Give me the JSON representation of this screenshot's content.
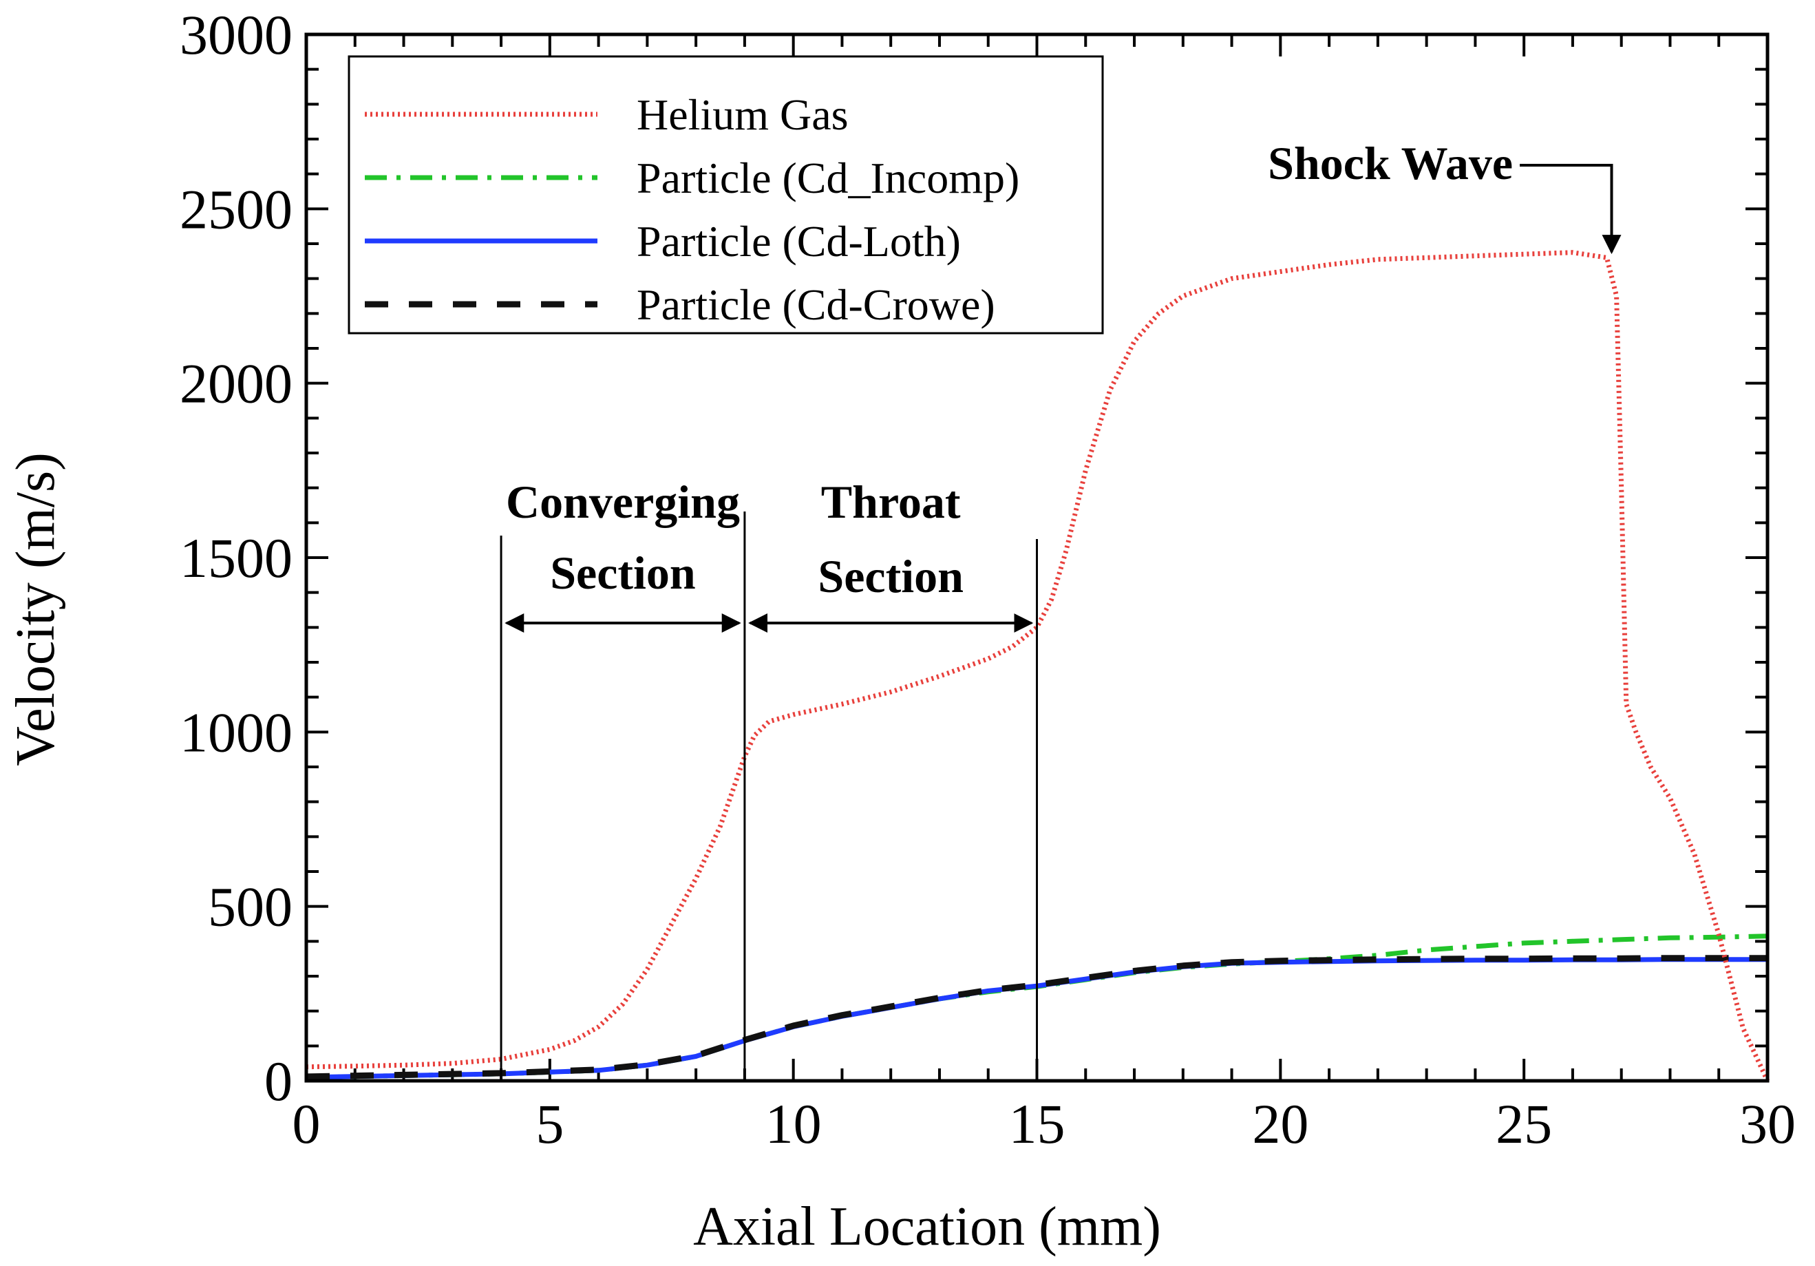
{
  "chart_data": {
    "type": "line",
    "title": "",
    "xlabel": "Axial Location (mm)",
    "ylabel": "Velocity (m/s)",
    "xlim": [
      0,
      30
    ],
    "ylim": [
      0,
      3000
    ],
    "xticks": [
      0,
      5,
      10,
      15,
      20,
      25,
      30
    ],
    "yticks": [
      0,
      500,
      1000,
      1500,
      2000,
      2500,
      3000
    ],
    "xtick_labels": [
      "0",
      "5",
      "10",
      "15",
      "20",
      "25",
      "30"
    ],
    "ytick_labels": [
      "0",
      "500",
      "1000",
      "1500",
      "2000",
      "2500",
      "3000"
    ],
    "grid": false,
    "legend_position": "top-left",
    "series": [
      {
        "name": "Helium Gas",
        "color": "#e8403c",
        "style": "dotted",
        "x": [
          0,
          1,
          2,
          3,
          4,
          5,
          5.5,
          6,
          6.5,
          7,
          7.5,
          8,
          8.5,
          9,
          9.2,
          9.5,
          10,
          11,
          12,
          13,
          14,
          14.5,
          15,
          15.3,
          15.6,
          16,
          16.5,
          17,
          17.5,
          18,
          19,
          20,
          21,
          22,
          23,
          24,
          25,
          26,
          26.7,
          26.9,
          27,
          27.1,
          27.3,
          27.6,
          28,
          28.5,
          29,
          29.5,
          30
        ],
        "y": [
          40,
          42,
          45,
          50,
          62,
          90,
          115,
          155,
          220,
          320,
          450,
          580,
          730,
          930,
          990,
          1030,
          1050,
          1080,
          1115,
          1160,
          1210,
          1245,
          1300,
          1380,
          1520,
          1750,
          1980,
          2120,
          2200,
          2250,
          2300,
          2320,
          2340,
          2355,
          2360,
          2365,
          2370,
          2375,
          2360,
          2250,
          1700,
          1080,
          1000,
          900,
          810,
          650,
          420,
          150,
          0
        ]
      },
      {
        "name": "Particle (Cd_Incomp)",
        "color": "#22c42a",
        "style": "dash-dot",
        "x": [
          0,
          2,
          4,
          6,
          7,
          8,
          9,
          10,
          11,
          12,
          13,
          14,
          15,
          16,
          17,
          18,
          19,
          20,
          21,
          22,
          23,
          24,
          25,
          26,
          27,
          28,
          29,
          30
        ],
        "y": [
          10,
          15,
          20,
          30,
          45,
          70,
          115,
          155,
          185,
          210,
          235,
          255,
          270,
          290,
          310,
          325,
          335,
          342,
          350,
          360,
          375,
          385,
          395,
          400,
          405,
          410,
          412,
          415
        ]
      },
      {
        "name": "Particle (Cd-Loth)",
        "color": "#1f3bff",
        "style": "solid",
        "x": [
          0,
          2,
          4,
          6,
          7,
          8,
          9,
          10,
          11,
          12,
          13,
          14,
          15,
          16,
          17,
          18,
          19,
          20,
          21,
          22,
          23,
          24,
          25,
          26,
          27,
          28,
          29,
          30
        ],
        "y": [
          10,
          15,
          20,
          30,
          45,
          70,
          115,
          155,
          185,
          210,
          235,
          258,
          272,
          292,
          312,
          327,
          337,
          340,
          342,
          344,
          345,
          346,
          346,
          347,
          347,
          348,
          348,
          348
        ]
      },
      {
        "name": "Particle (Cd-Crowe)",
        "color": "#111111",
        "style": "dashed",
        "x": [
          0,
          2,
          4,
          6,
          7,
          8,
          9,
          10,
          11,
          12,
          13,
          14,
          15,
          16,
          17,
          18,
          19,
          20,
          21,
          22,
          23,
          24,
          25,
          26,
          27,
          28,
          29,
          30
        ],
        "y": [
          12,
          17,
          22,
          32,
          47,
          72,
          117,
          158,
          188,
          213,
          238,
          260,
          275,
          295,
          315,
          330,
          340,
          344,
          346,
          348,
          349,
          350,
          350,
          351,
          351,
          352,
          352,
          352
        ]
      }
    ],
    "annotations": {
      "shock_wave": {
        "label": "Shock Wave",
        "x": 26.8,
        "y": 2360
      },
      "converging": {
        "line1": "Converging",
        "line2": "Section",
        "x_start": 4,
        "x_end": 9
      },
      "throat": {
        "line1": "Throat",
        "line2": "Section",
        "x_start": 9,
        "x_end": 15
      }
    }
  }
}
